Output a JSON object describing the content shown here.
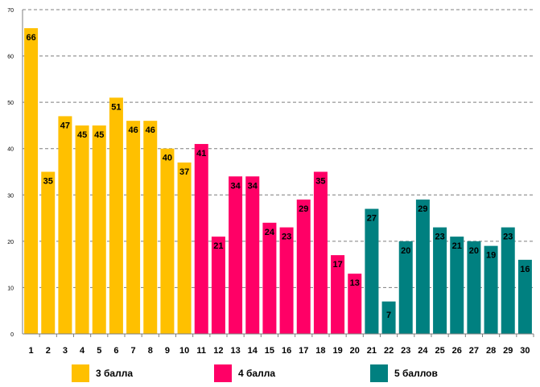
{
  "chart_data": {
    "type": "bar",
    "title": "",
    "xlabel": "",
    "ylabel": "",
    "ylim": [
      0,
      70
    ],
    "yticks": [
      0,
      10,
      20,
      30,
      40,
      50,
      60,
      70
    ],
    "grid": true,
    "categories": [
      "1",
      "2",
      "3",
      "4",
      "5",
      "6",
      "7",
      "8",
      "9",
      "10",
      "11",
      "12",
      "13",
      "14",
      "15",
      "16",
      "17",
      "18",
      "19",
      "20",
      "21",
      "22",
      "23",
      "24",
      "25",
      "26",
      "27",
      "28",
      "29",
      "30"
    ],
    "values": [
      66,
      35,
      47,
      45,
      45,
      51,
      46,
      46,
      40,
      37,
      41,
      21,
      34,
      34,
      24,
      23,
      29,
      35,
      17,
      13,
      27,
      7,
      20,
      29,
      23,
      21,
      20,
      19,
      23,
      16
    ],
    "groups": [
      0,
      0,
      0,
      0,
      0,
      0,
      0,
      0,
      0,
      0,
      1,
      1,
      1,
      1,
      1,
      1,
      1,
      1,
      1,
      1,
      2,
      2,
      2,
      2,
      2,
      2,
      2,
      2,
      2,
      2
    ],
    "series": [
      {
        "name": "3 балла",
        "color": "#FFC000"
      },
      {
        "name": "4 балла",
        "color": "#FF0066"
      },
      {
        "name": "5 баллов",
        "color": "#008080"
      }
    ]
  }
}
